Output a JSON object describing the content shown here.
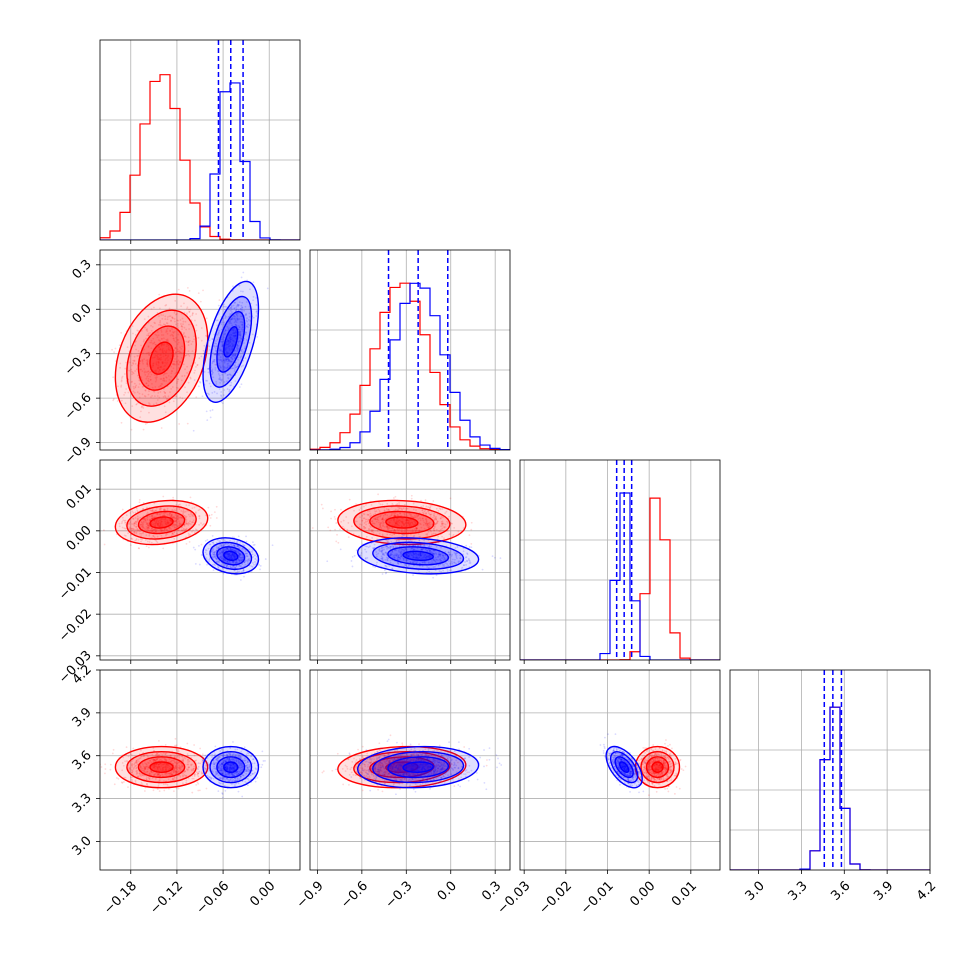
{
  "chart_data": {
    "type": "scatter",
    "colors": {
      "series_a": "#ff0000",
      "series_b": "#0000ff",
      "grid": "#b0b0b0"
    },
    "series": [
      {
        "color": "red",
        "means": [
          -0.14,
          -0.33,
          0.002,
          3.52
        ],
        "sds": [
          0.025,
          0.18,
          0.0022,
          0.06
        ]
      },
      {
        "color": "blue",
        "means": [
          -0.05,
          -0.22,
          -0.006,
          3.52
        ],
        "sds": [
          0.015,
          0.17,
          0.0018,
          0.06
        ]
      }
    ],
    "quantile_lines_blue": [
      [
        -0.066,
        -0.05,
        -0.034
      ],
      [
        -0.42,
        -0.22,
        -0.02
      ],
      [
        -0.0078,
        -0.006,
        -0.0042
      ],
      [
        3.46,
        3.52,
        3.58
      ]
    ],
    "ranges": [
      [
        -0.22,
        0.04
      ],
      [
        -0.95,
        0.4
      ],
      [
        -0.031,
        0.017
      ],
      [
        2.8,
        4.2
      ]
    ],
    "ticks": [
      {
        "values": [
          -0.18,
          -0.12,
          -0.06,
          0.0
        ],
        "labels": [
          "−0.18",
          "−0.12",
          "−0.06",
          "0.00"
        ]
      },
      {
        "values": [
          -0.9,
          -0.6,
          -0.3,
          0.0,
          0.3
        ],
        "labels": [
          "−0.9",
          "−0.6",
          "−0.3",
          "0.0",
          "0.3"
        ]
      },
      {
        "values": [
          -0.03,
          -0.02,
          -0.01,
          0.0,
          0.01
        ],
        "labels": [
          "−0.03",
          "−0.02",
          "−0.01",
          "0.00",
          "0.01"
        ]
      },
      {
        "values": [
          3.0,
          3.3,
          3.6,
          3.9,
          4.2
        ],
        "labels": [
          "3.0",
          "3.3",
          "3.6",
          "3.9",
          "4.2"
        ]
      }
    ],
    "grid": true,
    "legend": "none"
  }
}
